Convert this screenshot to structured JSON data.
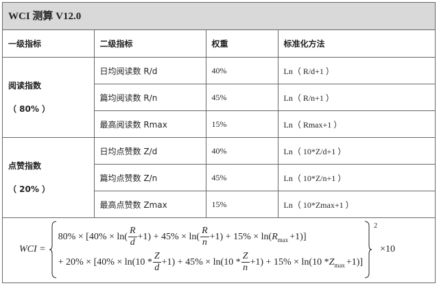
{
  "title": "WCI 测算 V12.0",
  "headers": [
    "一级指标",
    "二级指标",
    "权重",
    "标准化方法"
  ],
  "groups": [
    {
      "name": "阅读指数",
      "weight": "（ 80% ）",
      "rows": [
        {
          "metric": "日均阅读数 R/d",
          "weight": "40%",
          "method": "Ln（ R/d+1 ）"
        },
        {
          "metric": "篇均阅读数 R/n",
          "weight": "45%",
          "method": "Ln（ R/n+1 ）"
        },
        {
          "metric": "最高阅读数 Rmax",
          "weight": "15%",
          "method": "Ln（ Rmax+1 ）"
        }
      ]
    },
    {
      "name": "点赞指数",
      "weight": "（ 20% ）",
      "rows": [
        {
          "metric": "日均点赞数 Z/d",
          "weight": "40%",
          "method": "Ln（ 10*Z/d+1 ）"
        },
        {
          "metric": "篇均点赞数 Z/n",
          "weight": "45%",
          "method": "Ln（ 10*Z/n+1 ）"
        },
        {
          "metric": "最高点赞数 Zmax",
          "weight": "15%",
          "method": "Ln（ 10*Zmax+1 ）"
        }
      ]
    }
  ],
  "formula": {
    "lhs": "WCI =",
    "l1a": "80% × [40% × ln(",
    "R": "R",
    "d": "d",
    "n": "n",
    "Z": "Z",
    "l1b": "+1) + 45% × ln(",
    "l1c": "+1) + 15% × ln(",
    "Rmax": "R",
    "max": "max",
    "l1d": " +1)]",
    "l2a": "+ 20% × [40% × ln(10 *",
    "l2b": "+1) + 45% × ln(10 *",
    "l2c": "+1) + 15% × ln(10 * ",
    "Zmax": "Z",
    "l2d": " +1)]",
    "power": "2",
    "times": "×10"
  }
}
